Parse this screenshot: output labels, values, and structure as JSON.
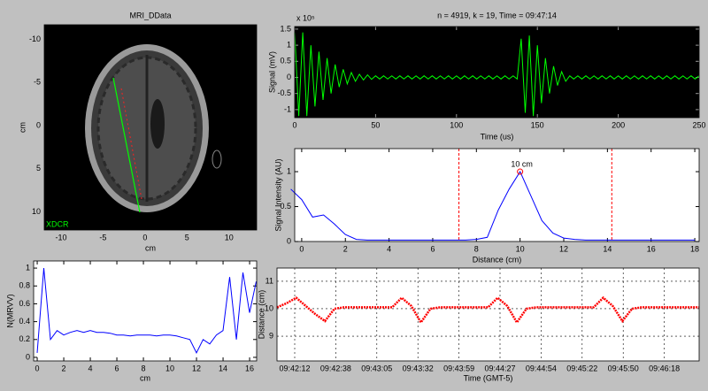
{
  "chart_data": [
    {
      "type": "image",
      "title": "MRI_DData",
      "xlabel": "cm",
      "ylabel": "cm",
      "annotation": "XDCR",
      "xlim": [
        -12,
        13.3
      ],
      "ylim": [
        -11.7,
        12.1
      ],
      "y_reversed": true,
      "xticks": [
        -10,
        -5,
        0,
        5,
        10
      ],
      "yticks": [
        -10,
        -5,
        0,
        5,
        10
      ]
    },
    {
      "type": "line",
      "title": "n = 4919, k = 19, Time = 09:47:14",
      "xlabel": "Time (us)",
      "ylabel": "Signal (mV)",
      "y_multiplier": "x 10⁵",
      "background": "#000000",
      "color": "#00ff00",
      "xlim": [
        0,
        250
      ],
      "ylim": [
        -1.25,
        1.58
      ],
      "xticks": [
        0,
        50,
        100,
        150,
        200,
        250
      ],
      "yticks": [
        -1,
        -0.5,
        0,
        0.5,
        1,
        1.5
      ],
      "x": [
        0,
        2.5,
        5,
        7.5,
        10,
        12.5,
        15,
        17.5,
        20,
        22.5,
        25,
        27.5,
        30,
        32.5,
        35,
        37.5,
        40,
        42.5,
        45,
        47.5,
        50,
        52.5,
        55,
        57.5,
        60,
        62.5,
        65,
        67.5,
        70,
        72.5,
        75,
        77.5,
        80,
        82.5,
        85,
        87.5,
        90,
        92.5,
        95,
        97.5,
        100,
        102.5,
        105,
        107.5,
        110,
        112.5,
        115,
        117.5,
        120,
        122.5,
        125,
        127.5,
        130,
        132.5,
        135,
        137.5,
        140,
        142.5,
        145,
        147.5,
        150,
        152.5,
        155,
        157.5,
        160,
        162.5,
        165,
        167.5,
        170,
        172.5,
        175,
        177.5,
        180,
        182.5,
        185,
        187.5,
        190,
        192.5,
        195,
        197.5,
        200,
        202.5,
        205,
        207.5,
        210,
        212.5,
        215,
        217.5,
        220,
        222.5,
        225,
        227.5,
        230,
        232.5,
        235,
        237.5,
        240,
        242.5,
        245,
        247.5,
        250
      ],
      "values": [
        1.4,
        -1.2,
        1.4,
        -1.2,
        1.0,
        -0.9,
        0.8,
        -0.7,
        0.6,
        -0.5,
        0.4,
        -0.3,
        0.25,
        -0.2,
        0.15,
        -0.12,
        0.1,
        -0.08,
        0.08,
        -0.06,
        0.05,
        -0.05,
        0.05,
        -0.05,
        0.05,
        -0.05,
        0.05,
        -0.05,
        0.05,
        -0.05,
        0.05,
        -0.05,
        0.05,
        -0.05,
        0.05,
        -0.05,
        0.05,
        -0.05,
        0.05,
        -0.05,
        0.05,
        -0.05,
        0.05,
        -0.05,
        0.05,
        -0.05,
        0.05,
        -0.05,
        0.05,
        -0.05,
        0.05,
        -0.05,
        0.05,
        -0.05,
        0.05,
        -0.05,
        1.2,
        -1.1,
        1.3,
        -1.2,
        1.0,
        -0.8,
        0.6,
        -0.5,
        0.35,
        -0.25,
        0.18,
        -0.12,
        0.05,
        -0.05,
        0.05,
        -0.05,
        0.05,
        -0.05,
        0.05,
        -0.05,
        0.05,
        -0.05,
        0.05,
        -0.05,
        0.05,
        -0.05,
        0.05,
        -0.05,
        0.05,
        -0.05,
        0.05,
        -0.05,
        0.05,
        -0.05,
        0.05,
        -0.05,
        0.05,
        -0.05,
        0.05,
        -0.05,
        0.05,
        -0.05,
        0.05,
        -0.05,
        0.05
      ]
    },
    {
      "type": "line",
      "xlabel": "Distance (cm)",
      "ylabel": "Signal Intensity (AU)",
      "background": "#ffffff",
      "color": "#0000ff",
      "xlim": [
        -0.32,
        18.2
      ],
      "ylim": [
        0,
        1.33
      ],
      "xticks": [
        0,
        2,
        4,
        6,
        8,
        10,
        12,
        14,
        16,
        18
      ],
      "yticks": [
        0,
        0.5,
        1
      ],
      "x": [
        -0.5,
        0,
        0.5,
        1,
        1.5,
        2,
        2.5,
        3,
        3.5,
        4,
        4.5,
        5,
        5.5,
        6,
        6.5,
        7,
        7.5,
        8,
        8.5,
        9,
        9.5,
        10,
        10.5,
        11,
        11.5,
        12,
        12.5,
        13,
        13.5,
        14,
        14.5,
        15,
        15.5,
        16,
        16.5,
        17,
        17.5,
        18
      ],
      "values": [
        0.75,
        0.6,
        0.35,
        0.38,
        0.25,
        0.1,
        0.03,
        0.02,
        0.02,
        0.02,
        0.02,
        0.02,
        0.02,
        0.02,
        0.02,
        0.02,
        0.02,
        0.03,
        0.06,
        0.45,
        0.75,
        1.0,
        0.65,
        0.3,
        0.12,
        0.05,
        0.03,
        0.02,
        0.02,
        0.02,
        0.02,
        0.02,
        0.02,
        0.02,
        0.02,
        0.02,
        0.02,
        0.02
      ],
      "vlines": [
        7.2,
        14.2
      ],
      "vline_color": "#ff0000",
      "annotation": "10 cm",
      "annotation_index": 21
    },
    {
      "type": "line",
      "xlabel": "cm",
      "ylabel": "N(MRVV)",
      "background": "#ffffff",
      "color": "#0000ff",
      "xlim": [
        -0.27,
        16.53
      ],
      "ylim": [
        -0.04,
        1.08
      ],
      "xticks": [
        0,
        2,
        4,
        6,
        8,
        10,
        12,
        14,
        16
      ],
      "yticks": [
        0,
        0.2,
        0.4,
        0.6,
        0.8,
        1
      ],
      "x": [
        0,
        0.5,
        1,
        1.5,
        2,
        2.5,
        3,
        3.5,
        4,
        4.5,
        5,
        5.5,
        6,
        6.5,
        7,
        7.5,
        8,
        8.5,
        9,
        9.5,
        10,
        10.5,
        11,
        11.5,
        12,
        12.5,
        13,
        13.5,
        14,
        14.5,
        15,
        15.5,
        16,
        16.5
      ],
      "values": [
        0.05,
        1.0,
        0.2,
        0.3,
        0.25,
        0.28,
        0.3,
        0.28,
        0.3,
        0.28,
        0.28,
        0.27,
        0.25,
        0.25,
        0.24,
        0.25,
        0.25,
        0.25,
        0.24,
        0.25,
        0.25,
        0.24,
        0.22,
        0.2,
        0.05,
        0.2,
        0.15,
        0.25,
        0.3,
        0.9,
        0.2,
        0.95,
        0.5,
        0.85
      ]
    },
    {
      "type": "dotline",
      "xlabel": "Time (GMT-5)",
      "ylabel": "Distance (cm)",
      "background": "#ffffff",
      "color": "#ff0000",
      "grid": true,
      "ylim": [
        8.1,
        11.48
      ],
      "yticks": [
        9,
        10,
        11
      ],
      "xtick_labels": [
        "09:42:12",
        "09:42:38",
        "09:43:05",
        "09:43:32",
        "09:43:59",
        "09:44:27",
        "09:44:54",
        "09:45:22",
        "09:45:50",
        "09:46:18"
      ],
      "values": [
        10.05,
        10.2,
        10.4,
        10.1,
        9.8,
        9.55,
        10.0,
        10.05,
        10.05,
        10.05,
        10.05,
        10.05,
        10.05,
        10.4,
        10.1,
        9.5,
        10.0,
        10.05,
        10.05,
        10.05,
        10.05,
        10.05,
        10.05,
        10.4,
        10.1,
        9.5,
        10.0,
        10.05,
        10.05,
        10.05,
        10.05,
        10.05,
        10.05,
        10.05,
        10.4,
        10.1,
        9.55,
        10.0,
        10.05,
        10.05,
        10.05,
        10.05,
        10.05,
        10.05,
        10.05
      ]
    }
  ]
}
